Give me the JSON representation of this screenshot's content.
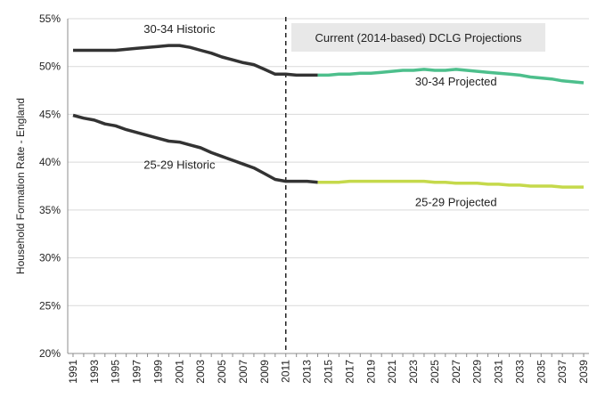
{
  "chart_data": {
    "type": "line",
    "title": "",
    "xlabel": "",
    "ylabel": "Household Formation Rate - England",
    "ylim": [
      0.2,
      0.55
    ],
    "y_ticks": [
      "20%",
      "25%",
      "30%",
      "35%",
      "40%",
      "45%",
      "50%",
      "55%"
    ],
    "y_tick_values": [
      0.2,
      0.25,
      0.3,
      0.35,
      0.4,
      0.45,
      0.5,
      0.55
    ],
    "x_ticks": [
      "1991",
      "1993",
      "1995",
      "1997",
      "1999",
      "2001",
      "2003",
      "2005",
      "2007",
      "2009",
      "2011",
      "2013",
      "2015",
      "2017",
      "2019",
      "2021",
      "2023",
      "2025",
      "2027",
      "2029",
      "2031",
      "2033",
      "2035",
      "2037",
      "2039"
    ],
    "xlim": [
      1990.5,
      2039.5
    ],
    "grid": "horizontal",
    "divider_year": 2011,
    "divider_label": "Current (2014-based) DCLG Projections",
    "series": [
      {
        "name": "30-34 Historic",
        "color": "#333333",
        "x": [
          1991,
          1992,
          1993,
          1994,
          1995,
          1996,
          1997,
          1998,
          1999,
          2000,
          2001,
          2002,
          2003,
          2004,
          2005,
          2006,
          2007,
          2008,
          2009,
          2010,
          2011,
          2012,
          2013,
          2014
        ],
        "values": [
          0.517,
          0.517,
          0.517,
          0.517,
          0.517,
          0.518,
          0.519,
          0.52,
          0.521,
          0.522,
          0.522,
          0.52,
          0.517,
          0.514,
          0.51,
          0.507,
          0.504,
          0.502,
          0.497,
          0.492,
          0.492,
          0.491,
          0.491,
          0.491
        ]
      },
      {
        "name": "25-29 Historic",
        "color": "#333333",
        "x": [
          1991,
          1992,
          1993,
          1994,
          1995,
          1996,
          1997,
          1998,
          1999,
          2000,
          2001,
          2002,
          2003,
          2004,
          2005,
          2006,
          2007,
          2008,
          2009,
          2010,
          2011,
          2012,
          2013,
          2014
        ],
        "values": [
          0.449,
          0.446,
          0.444,
          0.44,
          0.438,
          0.434,
          0.431,
          0.428,
          0.425,
          0.422,
          0.421,
          0.418,
          0.415,
          0.41,
          0.406,
          0.402,
          0.398,
          0.394,
          0.388,
          0.382,
          0.38,
          0.38,
          0.38,
          0.379
        ]
      },
      {
        "name": "30-34 Projected",
        "color": "#4dbf8c",
        "x": [
          2014,
          2015,
          2016,
          2017,
          2018,
          2019,
          2020,
          2021,
          2022,
          2023,
          2024,
          2025,
          2026,
          2027,
          2028,
          2029,
          2030,
          2031,
          2032,
          2033,
          2034,
          2035,
          2036,
          2037,
          2038,
          2039
        ],
        "values": [
          0.491,
          0.491,
          0.492,
          0.492,
          0.493,
          0.493,
          0.494,
          0.495,
          0.496,
          0.496,
          0.497,
          0.496,
          0.496,
          0.497,
          0.496,
          0.495,
          0.494,
          0.493,
          0.492,
          0.491,
          0.489,
          0.488,
          0.487,
          0.485,
          0.484,
          0.483
        ]
      },
      {
        "name": "25-29 Projected",
        "color": "#c5d94b",
        "x": [
          2014,
          2015,
          2016,
          2017,
          2018,
          2019,
          2020,
          2021,
          2022,
          2023,
          2024,
          2025,
          2026,
          2027,
          2028,
          2029,
          2030,
          2031,
          2032,
          2033,
          2034,
          2035,
          2036,
          2037,
          2038,
          2039
        ],
        "values": [
          0.379,
          0.379,
          0.379,
          0.38,
          0.38,
          0.38,
          0.38,
          0.38,
          0.38,
          0.38,
          0.38,
          0.379,
          0.379,
          0.378,
          0.378,
          0.378,
          0.377,
          0.377,
          0.376,
          0.376,
          0.375,
          0.375,
          0.375,
          0.374,
          0.374,
          0.374
        ]
      }
    ],
    "annotations": [
      {
        "text": "30-34 Historic",
        "x": 2001,
        "y": 0.539
      },
      {
        "text": "25-29 Historic",
        "x": 2001,
        "y": 0.397
      },
      {
        "text": "30-34 Projected",
        "x": 2027,
        "y": 0.484
      },
      {
        "text": "25-29 Projected",
        "x": 2027,
        "y": 0.358
      }
    ]
  }
}
